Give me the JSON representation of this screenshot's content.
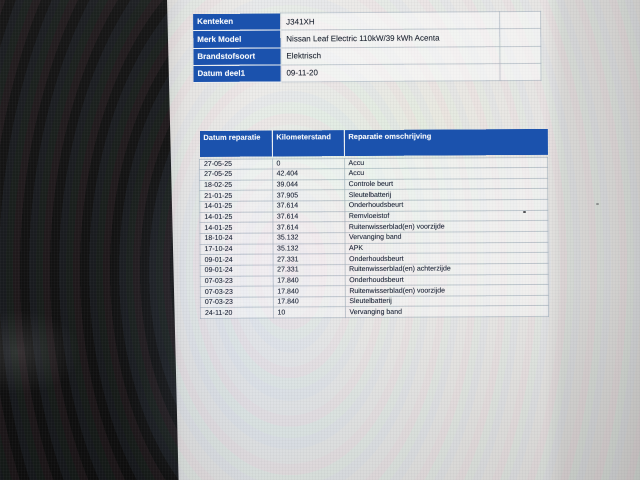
{
  "colors": {
    "header_blue": "#1b52ad",
    "bezel_black": "#121212",
    "document_white": "#edecea",
    "photo_gray": "#d2d1cf"
  },
  "info_table": {
    "rows": [
      {
        "label": "Kenteken",
        "value": "J341XH"
      },
      {
        "label": "Merk Model",
        "value": "Nissan Leaf Electric 110kW/39 kWh Acenta"
      },
      {
        "label": "Brandstofsoort",
        "value": "Elektrisch"
      },
      {
        "label": "Datum deel1",
        "value": "09-11-20"
      }
    ]
  },
  "repair_table": {
    "headers": [
      "Datum reparatie",
      "Kilometerstand",
      "Reparatie omschrijving"
    ],
    "rows": [
      [
        "27-05-25",
        "0",
        "Accu"
      ],
      [
        "27-05-25",
        "42.404",
        "Accu"
      ],
      [
        "18-02-25",
        "39.044",
        "Controle beurt"
      ],
      [
        "21-01-25",
        "37.905",
        "Sleutelbatterij"
      ],
      [
        "14-01-25",
        "37.614",
        "Onderhoudsbeurt"
      ],
      [
        "14-01-25",
        "37.614",
        "Remvloeistof"
      ],
      [
        "14-01-25",
        "37.614",
        "Ruitenwisserblad(en) voorzijde"
      ],
      [
        "18-10-24",
        "35.132",
        "Vervanging band"
      ],
      [
        "17-10-24",
        "35.132",
        "APK"
      ],
      [
        "09-01-24",
        "27.331",
        "Onderhoudsbeurt"
      ],
      [
        "09-01-24",
        "27.331",
        "Ruitenwisserblad(en) achterzijde"
      ],
      [
        "07-03-23",
        "17.840",
        "Onderhoudsbeurt"
      ],
      [
        "07-03-23",
        "17.840",
        "Ruitenwisserblad(en) voorzijde"
      ],
      [
        "07-03-23",
        "17.840",
        "Sleutelbatterij"
      ],
      [
        "24-11-20",
        "10",
        "Vervanging band"
      ]
    ]
  }
}
